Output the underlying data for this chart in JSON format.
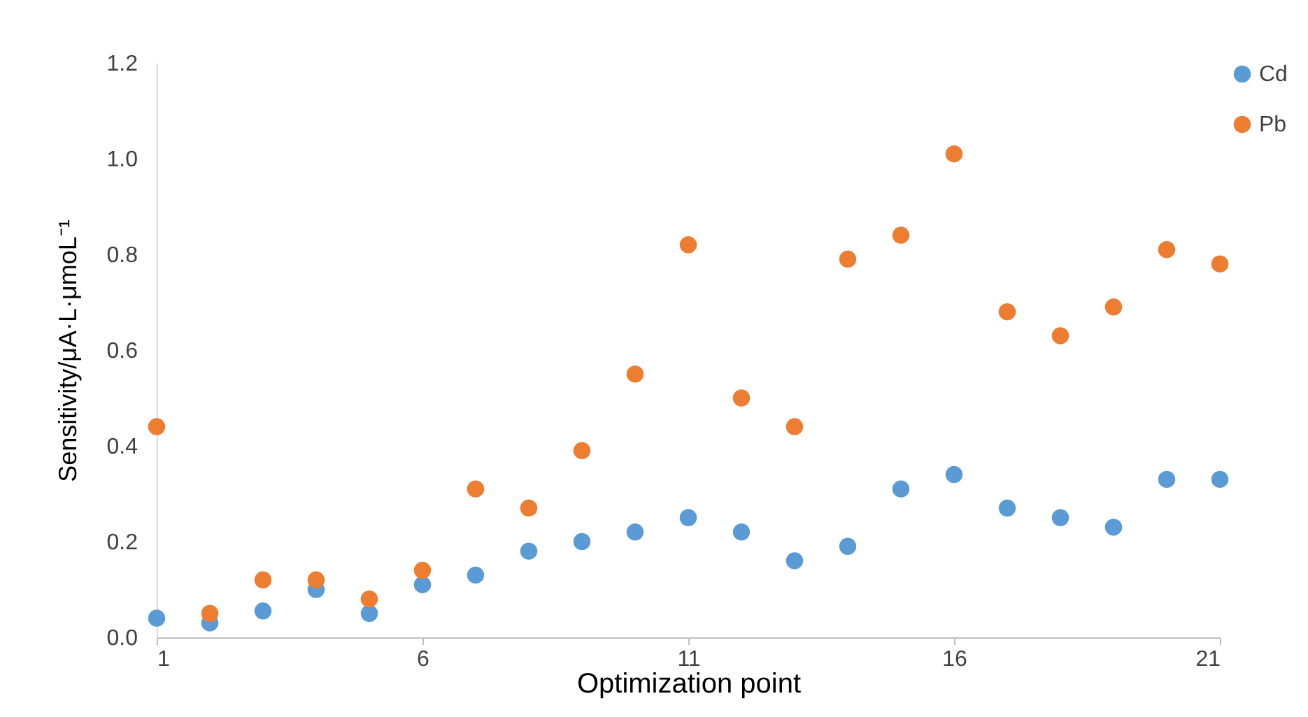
{
  "chart_data": {
    "type": "scatter",
    "xlabel": "Optimization point",
    "ylabel": "Sensitivity/μA·L·μmoL⁻¹",
    "x": [
      1,
      2,
      3,
      4,
      5,
      6,
      7,
      8,
      9,
      10,
      11,
      12,
      13,
      14,
      15,
      16,
      17,
      18,
      19,
      20,
      21
    ],
    "series": [
      {
        "name": "Cd",
        "color": "#5b9bd5",
        "values": [
          0.04,
          0.03,
          0.055,
          0.1,
          0.05,
          0.11,
          0.13,
          0.18,
          0.2,
          0.22,
          0.25,
          0.22,
          0.16,
          0.19,
          0.31,
          0.34,
          0.27,
          0.25,
          0.23,
          0.33,
          0.33
        ]
      },
      {
        "name": "Pb",
        "color": "#ed7d31",
        "values": [
          0.44,
          0.05,
          0.12,
          0.12,
          0.08,
          0.14,
          0.31,
          0.27,
          0.39,
          0.55,
          0.82,
          0.5,
          0.44,
          0.79,
          0.84,
          1.01,
          0.68,
          0.63,
          0.69,
          0.81,
          0.78
        ]
      }
    ],
    "xlim": [
      1,
      21
    ],
    "xticks": [
      1,
      6,
      11,
      16,
      21
    ],
    "ylim": [
      0,
      1.2
    ],
    "yticks": [
      {
        "value": 0,
        "label": "0.0"
      },
      {
        "value": 0.2,
        "label": "0.2"
      },
      {
        "value": 0.4,
        "label": "0.4"
      },
      {
        "value": 0.6,
        "label": "0.6"
      },
      {
        "value": 0.8,
        "label": "0.8"
      },
      {
        "value": 1,
        "label": "1.0"
      },
      {
        "value": 1.2,
        "label": "1.2"
      }
    ],
    "grid": false,
    "legend": "right",
    "marker": "circle"
  }
}
